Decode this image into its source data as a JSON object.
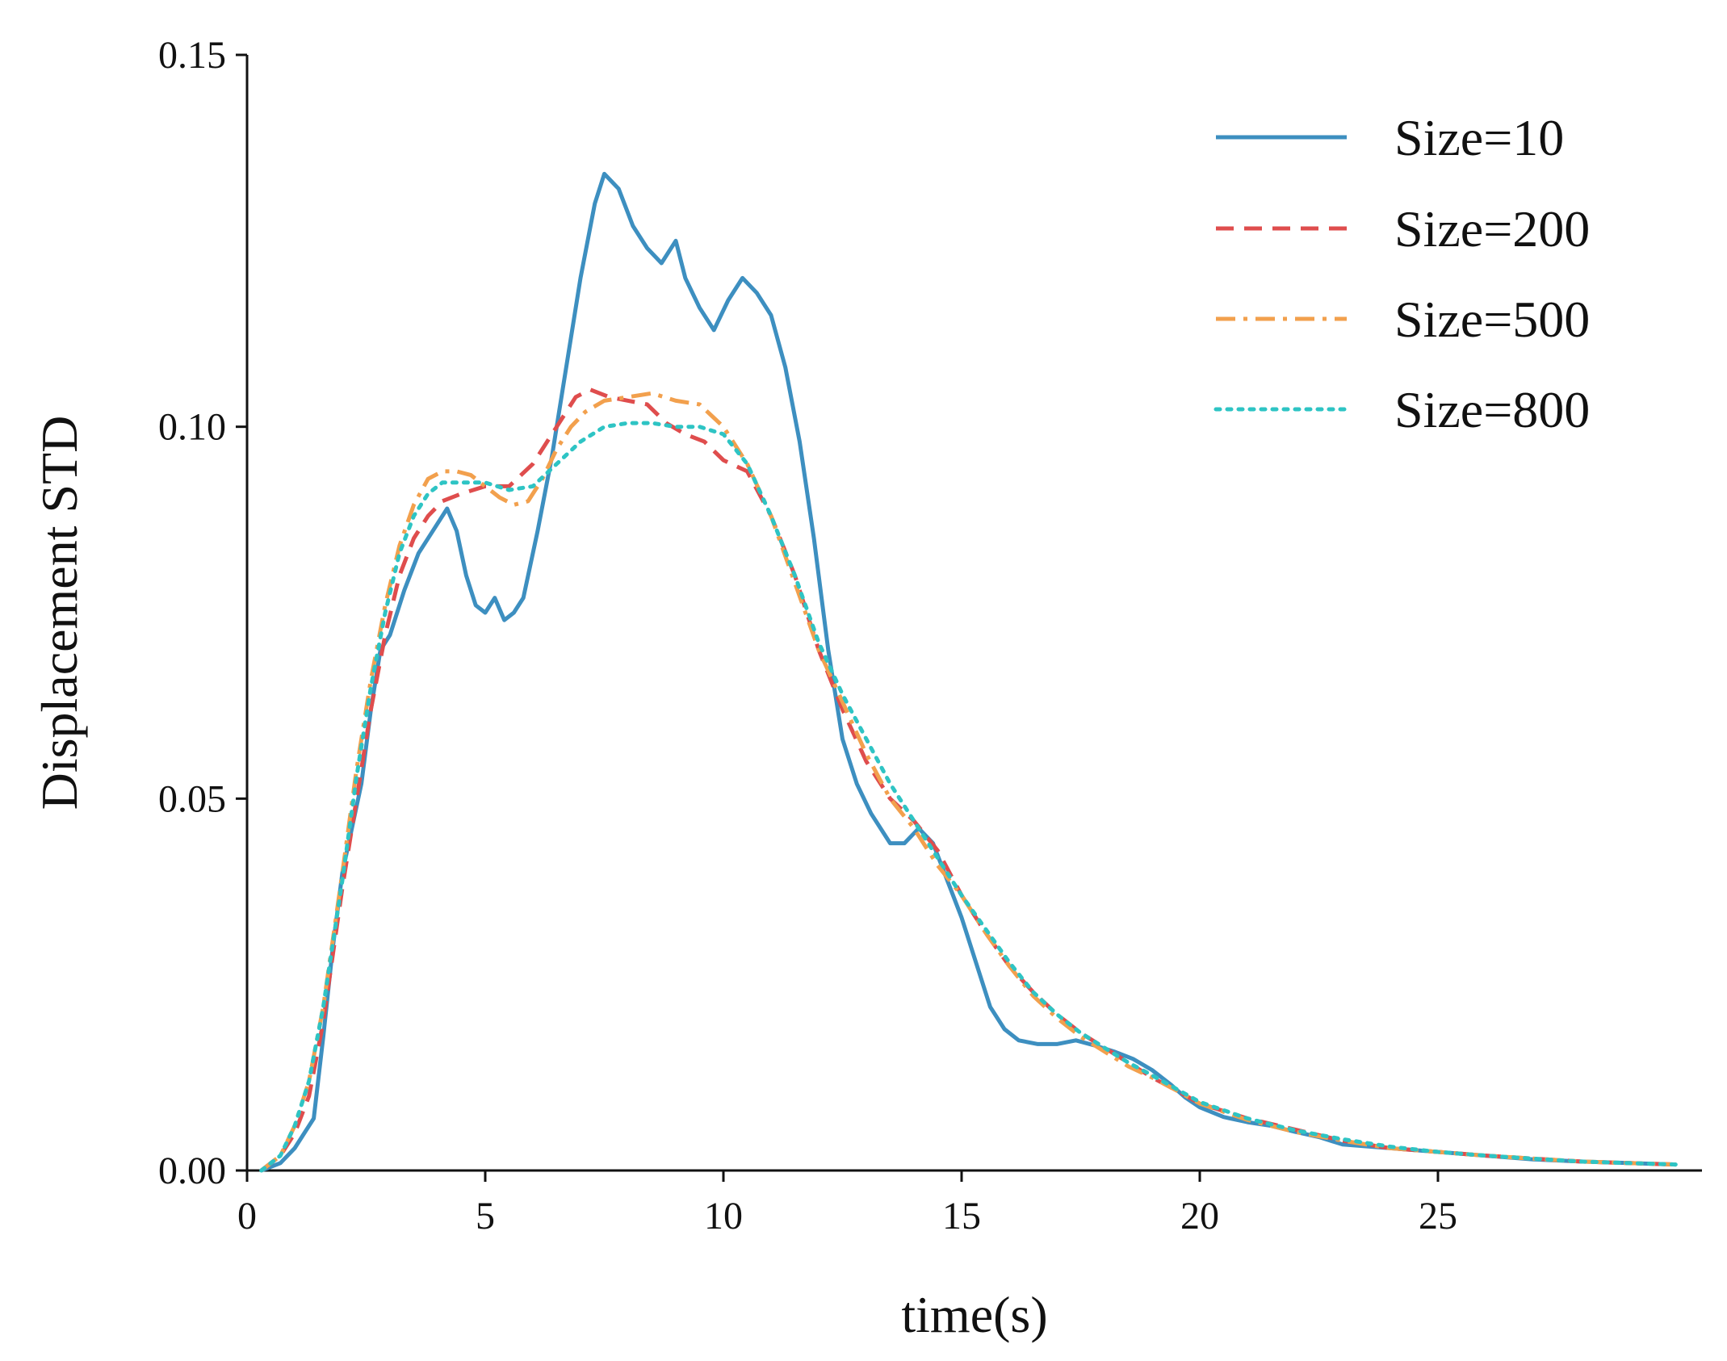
{
  "chart_data": {
    "type": "line",
    "title": "",
    "xlabel": "time(s)",
    "ylabel": "Displacement STD",
    "xlim": [
      0,
      30
    ],
    "ylim": [
      0,
      0.15
    ],
    "xticks": [
      0,
      5,
      10,
      15,
      20,
      25
    ],
    "xtick_labels": [
      "0",
      "5",
      "10",
      "15",
      "20",
      "25"
    ],
    "yticks": [
      0,
      0.05,
      0.1,
      0.15
    ],
    "ytick_labels": [
      "0.00",
      "0.05",
      "0.10",
      "0.15"
    ],
    "grid": false,
    "legend_position": "top-right",
    "series": [
      {
        "name": "Size=10",
        "color": "#3d8fc0",
        "style": "solid",
        "x": [
          0.3,
          0.7,
          1.0,
          1.2,
          1.4,
          1.6,
          1.8,
          2.0,
          2.2,
          2.4,
          2.6,
          2.8,
          3.0,
          3.3,
          3.6,
          3.9,
          4.2,
          4.4,
          4.6,
          4.8,
          5.0,
          5.2,
          5.4,
          5.6,
          5.8,
          6.1,
          6.4,
          6.7,
          7.0,
          7.3,
          7.5,
          7.8,
          8.1,
          8.4,
          8.7,
          9.0,
          9.2,
          9.5,
          9.8,
          10.1,
          10.4,
          10.7,
          11.0,
          11.3,
          11.6,
          11.9,
          12.2,
          12.5,
          12.8,
          13.1,
          13.5,
          13.8,
          14.1,
          14.4,
          14.7,
          15.0,
          15.3,
          15.6,
          15.9,
          16.2,
          16.6,
          17.0,
          17.4,
          17.8,
          18.2,
          18.6,
          19.0,
          19.4,
          19.7,
          20.0,
          20.5,
          21.0,
          21.5,
          22.0,
          22.5,
          23.0,
          24.0,
          25.0,
          26.0,
          27.0,
          28.0,
          29.0,
          30.0
        ],
        "y": [
          0.0,
          0.001,
          0.003,
          0.005,
          0.007,
          0.018,
          0.03,
          0.04,
          0.046,
          0.052,
          0.062,
          0.07,
          0.072,
          0.078,
          0.083,
          0.086,
          0.089,
          0.086,
          0.08,
          0.076,
          0.075,
          0.077,
          0.074,
          0.075,
          0.077,
          0.086,
          0.096,
          0.108,
          0.12,
          0.13,
          0.134,
          0.132,
          0.127,
          0.124,
          0.122,
          0.125,
          0.12,
          0.116,
          0.113,
          0.117,
          0.12,
          0.118,
          0.115,
          0.108,
          0.098,
          0.085,
          0.07,
          0.058,
          0.052,
          0.048,
          0.044,
          0.044,
          0.046,
          0.044,
          0.039,
          0.034,
          0.028,
          0.022,
          0.019,
          0.0175,
          0.017,
          0.017,
          0.0175,
          0.0168,
          0.016,
          0.015,
          0.0135,
          0.0115,
          0.0098,
          0.0085,
          0.0072,
          0.0065,
          0.006,
          0.0052,
          0.0045,
          0.0035,
          0.003,
          0.0025,
          0.002,
          0.0015,
          0.0012,
          0.001,
          0.0008
        ]
      },
      {
        "name": "Size=200",
        "color": "#df4d4d",
        "style": "dashed",
        "x": [
          0.3,
          0.7,
          1.0,
          1.3,
          1.6,
          2.0,
          2.3,
          2.6,
          2.9,
          3.2,
          3.5,
          3.8,
          4.1,
          4.5,
          5.0,
          5.5,
          6.0,
          6.5,
          6.9,
          7.2,
          7.6,
          8.0,
          8.4,
          8.8,
          9.2,
          9.6,
          10.0,
          10.5,
          11.0,
          11.5,
          12.0,
          12.5,
          13.0,
          13.5,
          14.0,
          14.5,
          15.0,
          15.5,
          16.0,
          16.5,
          17.0,
          17.5,
          18.0,
          18.5,
          19.0,
          19.5,
          20.0,
          21.0,
          22.0,
          23.0,
          24.0,
          25.0,
          26.0,
          27.0,
          28.0,
          29.0,
          30.0
        ],
        "y": [
          0.0,
          0.002,
          0.005,
          0.01,
          0.02,
          0.038,
          0.05,
          0.062,
          0.072,
          0.08,
          0.085,
          0.088,
          0.09,
          0.091,
          0.092,
          0.092,
          0.095,
          0.1,
          0.104,
          0.105,
          0.104,
          0.1035,
          0.103,
          0.1005,
          0.099,
          0.098,
          0.0955,
          0.094,
          0.088,
          0.08,
          0.07,
          0.062,
          0.055,
          0.05,
          0.047,
          0.043,
          0.037,
          0.032,
          0.0275,
          0.024,
          0.021,
          0.0185,
          0.0165,
          0.0145,
          0.0125,
          0.0108,
          0.009,
          0.007,
          0.0055,
          0.004,
          0.003,
          0.0025,
          0.002,
          0.0016,
          0.0012,
          0.001,
          0.0008
        ]
      },
      {
        "name": "Size=500",
        "color": "#f2a04d",
        "style": "dashdot",
        "x": [
          0.3,
          0.7,
          1.0,
          1.3,
          1.6,
          2.0,
          2.3,
          2.6,
          2.9,
          3.2,
          3.5,
          3.8,
          4.1,
          4.4,
          4.7,
          5.0,
          5.3,
          5.6,
          5.9,
          6.2,
          6.5,
          6.8,
          7.1,
          7.5,
          8.0,
          8.5,
          9.0,
          9.5,
          10.0,
          10.5,
          11.0,
          11.5,
          12.0,
          12.5,
          13.0,
          13.5,
          14.0,
          14.5,
          15.0,
          15.5,
          16.0,
          16.5,
          17.0,
          17.5,
          18.0,
          18.5,
          19.0,
          19.5,
          20.0,
          21.0,
          22.0,
          23.0,
          24.0,
          25.0,
          26.0,
          27.0,
          28.0,
          29.0,
          30.0
        ],
        "y": [
          0.0,
          0.002,
          0.006,
          0.012,
          0.022,
          0.04,
          0.054,
          0.066,
          0.076,
          0.084,
          0.0895,
          0.093,
          0.094,
          0.094,
          0.0935,
          0.092,
          0.0905,
          0.0895,
          0.09,
          0.093,
          0.097,
          0.1,
          0.102,
          0.1035,
          0.104,
          0.1045,
          0.1035,
          0.103,
          0.1,
          0.095,
          0.088,
          0.079,
          0.07,
          0.063,
          0.056,
          0.05,
          0.046,
          0.041,
          0.037,
          0.032,
          0.0275,
          0.0235,
          0.0205,
          0.018,
          0.016,
          0.014,
          0.0125,
          0.0108,
          0.009,
          0.0068,
          0.0052,
          0.004,
          0.003,
          0.0025,
          0.002,
          0.0016,
          0.0012,
          0.001,
          0.0008
        ]
      },
      {
        "name": "Size=800",
        "color": "#2ec4c4",
        "style": "dotted",
        "x": [
          0.3,
          0.7,
          1.0,
          1.3,
          1.6,
          2.0,
          2.3,
          2.6,
          2.9,
          3.2,
          3.5,
          3.8,
          4.1,
          4.5,
          5.0,
          5.5,
          6.0,
          6.5,
          7.0,
          7.5,
          8.0,
          8.5,
          9.0,
          9.5,
          10.0,
          10.5,
          11.0,
          11.5,
          12.0,
          12.5,
          13.0,
          13.5,
          14.0,
          14.5,
          15.0,
          15.5,
          16.0,
          16.5,
          17.0,
          17.5,
          18.0,
          18.5,
          19.0,
          19.5,
          20.0,
          21.0,
          22.0,
          23.0,
          24.0,
          25.0,
          26.0,
          27.0,
          28.0,
          29.0,
          30.0
        ],
        "y": [
          0.0,
          0.002,
          0.006,
          0.012,
          0.022,
          0.039,
          0.053,
          0.065,
          0.075,
          0.083,
          0.088,
          0.091,
          0.0925,
          0.0925,
          0.0925,
          0.0915,
          0.092,
          0.095,
          0.098,
          0.1,
          0.1005,
          0.1005,
          0.1,
          0.1,
          0.099,
          0.095,
          0.088,
          0.08,
          0.071,
          0.064,
          0.058,
          0.052,
          0.047,
          0.042,
          0.037,
          0.0325,
          0.028,
          0.024,
          0.021,
          0.0185,
          0.0165,
          0.0145,
          0.0128,
          0.011,
          0.0092,
          0.007,
          0.0054,
          0.0042,
          0.0032,
          0.0025,
          0.002,
          0.0016,
          0.0012,
          0.001,
          0.0008
        ]
      }
    ]
  }
}
